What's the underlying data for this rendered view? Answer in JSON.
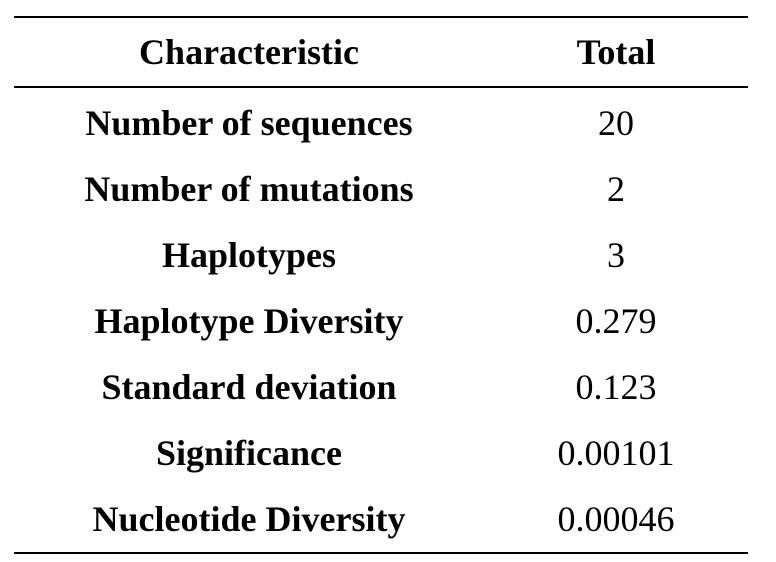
{
  "table": {
    "headers": [
      "Characteristic",
      "Total"
    ],
    "rows": [
      {
        "label": "Number of sequences",
        "value": "20"
      },
      {
        "label": "Number of mutations",
        "value": "2"
      },
      {
        "label": "Haplotypes",
        "value": "3"
      },
      {
        "label": "Haplotype Diversity",
        "value": "0.279"
      },
      {
        "label": "Standard deviation",
        "value": "0.123"
      },
      {
        "label": "Significance",
        "value": "0.00101"
      },
      {
        "label": "Nucleotide Diversity",
        "value": "0.00046"
      }
    ]
  }
}
